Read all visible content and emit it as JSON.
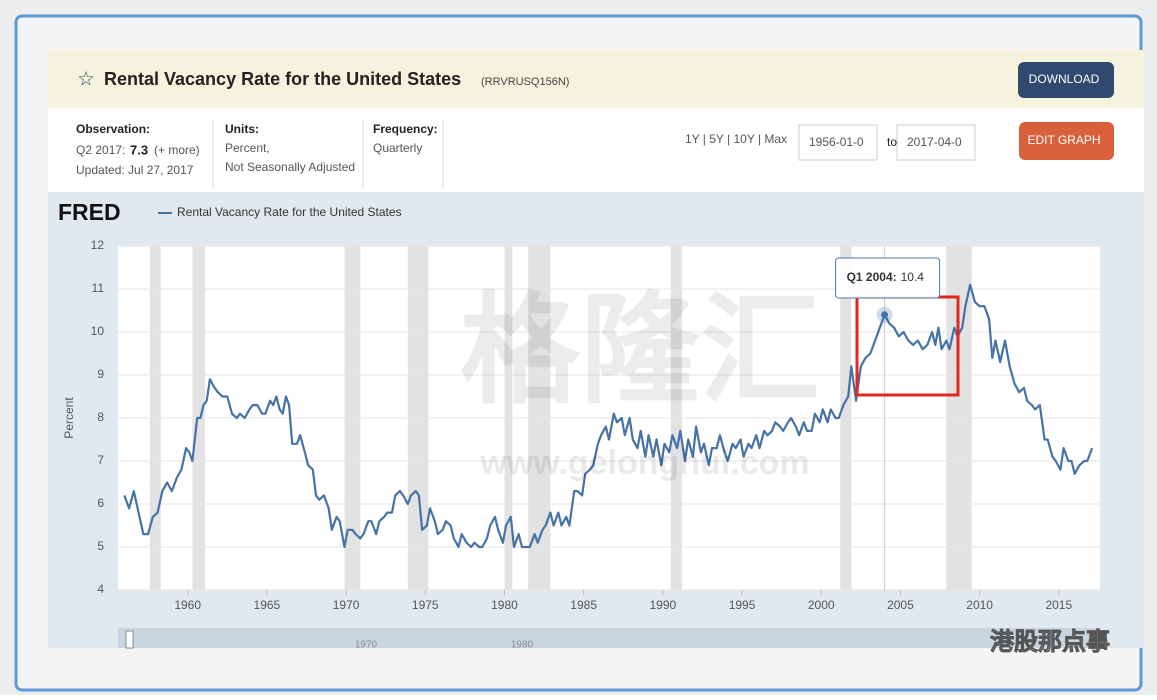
{
  "header": {
    "title": "Rental Vacancy Rate for the United States",
    "series_id": "(RRVRUSQ156N)",
    "download": "DOWNLOAD"
  },
  "info": {
    "observation_label": "Observation:",
    "observation_period": "Q2 2017:",
    "observation_value": 7.3,
    "observation_more": "(+ more)",
    "updated": "Updated: Jul 27, 2017",
    "units_label": "Units:",
    "units": [
      "Percent,",
      "Not Seasonally Adjusted"
    ],
    "frequency_label": "Frequency:",
    "frequency": "Quarterly"
  },
  "controls": {
    "ranges": "1Y | 5Y | 10Y | Max",
    "start": "1956-01-0",
    "to": "to",
    "end": "2017-04-0",
    "edit": "EDIT GRAPH"
  },
  "watermarks": [
    "格隆汇",
    "www.gelonghui.com",
    "港股那点事"
  ],
  "chart_data": {
    "type": "line",
    "logo": "FRED",
    "ylabel": "Percent",
    "grid": true,
    "xlim": [
      1955.6,
      2017.6
    ],
    "ylim": [
      4,
      12
    ],
    "xticks": [
      1960,
      1965,
      1970,
      1975,
      1980,
      1985,
      1990,
      1995,
      2000,
      2005,
      2010,
      2015
    ],
    "yticks": [
      4,
      5,
      6,
      7,
      8,
      9,
      10,
      11,
      12
    ],
    "shaded_periods": [
      [
        1957.6,
        1958.3
      ],
      [
        1960.3,
        1961.1
      ],
      [
        1969.9,
        1970.9
      ],
      [
        1973.9,
        1975.2
      ],
      [
        1980.0,
        1980.5
      ],
      [
        1981.5,
        1982.9
      ],
      [
        1990.5,
        1991.2
      ],
      [
        2001.2,
        2001.9
      ],
      [
        2007.9,
        2009.5
      ]
    ],
    "shade_color": "#e2e2e2",
    "tooltip": {
      "label": "Q1 2004:",
      "value": 10.4,
      "index": 189
    },
    "navigator_labels": [
      "1970",
      "1980"
    ],
    "x": [
      1956.0,
      1956.3,
      1956.6,
      1956.9,
      1957.2,
      1957.5,
      1957.8,
      1958.1,
      1958.4,
      1958.7,
      1959.0,
      1959.3,
      1959.6,
      1959.9,
      1960.1,
      1960.3,
      1960.6,
      1960.8,
      1961.0,
      1961.2,
      1961.4,
      1961.7,
      1961.9,
      1962.2,
      1962.5,
      1962.8,
      1963.1,
      1963.3,
      1963.6,
      1963.9,
      1964.1,
      1964.4,
      1964.7,
      1964.9,
      1965.2,
      1965.4,
      1965.6,
      1965.8,
      1966.0,
      1966.2,
      1966.4,
      1966.6,
      1966.9,
      1967.1,
      1967.4,
      1967.6,
      1967.9,
      1968.1,
      1968.3,
      1968.6,
      1968.9,
      1969.1,
      1969.4,
      1969.6,
      1969.9,
      1970.1,
      1970.4,
      1970.6,
      1970.9,
      1971.1,
      1971.4,
      1971.6,
      1971.9,
      1972.1,
      1972.4,
      1972.6,
      1972.9,
      1973.1,
      1973.4,
      1973.6,
      1973.9,
      1974.1,
      1974.4,
      1974.6,
      1974.8,
      1975.1,
      1975.3,
      1975.6,
      1975.8,
      1976.1,
      1976.3,
      1976.6,
      1976.8,
      1977.1,
      1977.3,
      1977.6,
      1977.9,
      1978.1,
      1978.4,
      1978.6,
      1978.9,
      1979.1,
      1979.4,
      1979.6,
      1979.9,
      1980.1,
      1980.4,
      1980.6,
      1980.9,
      1981.1,
      1981.4,
      1981.6,
      1981.9,
      1982.1,
      1982.4,
      1982.6,
      1982.9,
      1983.1,
      1983.4,
      1983.6,
      1983.9,
      1984.1,
      1984.4,
      1984.6,
      1984.9,
      1985.1,
      1985.4,
      1985.6,
      1985.9,
      1986.1,
      1986.4,
      1986.6,
      1986.9,
      1987.1,
      1987.4,
      1987.6,
      1987.9,
      1988.1,
      1988.4,
      1988.6,
      1988.9,
      1989.1,
      1989.4,
      1989.6,
      1989.9,
      1990.1,
      1990.4,
      1990.6,
      1990.9,
      1991.1,
      1991.4,
      1991.6,
      1991.9,
      1992.1,
      1992.4,
      1992.6,
      1992.9,
      1993.1,
      1993.4,
      1993.6,
      1993.9,
      1994.1,
      1994.4,
      1994.6,
      1994.9,
      1995.1,
      1995.4,
      1995.6,
      1995.9,
      1996.1,
      1996.4,
      1996.6,
      1996.9,
      1997.1,
      1997.4,
      1997.6,
      1997.9,
      1998.1,
      1998.4,
      1998.6,
      1998.9,
      1999.1,
      1999.4,
      1999.6,
      1999.9,
      2000.1,
      2000.4,
      2000.6,
      2000.9,
      2001.1,
      2001.4,
      2001.7,
      2001.9,
      2002.2,
      2002.5,
      2002.8,
      2003.1,
      2003.4,
      2003.7,
      2004.0,
      2004.3,
      2004.6,
      2004.9,
      2005.2,
      2005.5,
      2005.8,
      2006.1,
      2006.4,
      2006.7,
      2007.0,
      2007.2,
      2007.4,
      2007.6,
      2007.9,
      2008.1,
      2008.4,
      2008.6,
      2008.9,
      2009.1,
      2009.4,
      2009.7,
      2010.0,
      2010.3,
      2010.6,
      2010.8,
      2011.0,
      2011.3,
      2011.6,
      2011.9,
      2012.2,
      2012.5,
      2012.8,
      2013.0,
      2013.3,
      2013.5,
      2013.8,
      2014.1,
      2014.3,
      2014.6,
      2014.8,
      2015.1,
      2015.3,
      2015.6,
      2015.8,
      2016.0,
      2016.3,
      2016.6,
      2016.8,
      2017.1
    ],
    "series": [
      {
        "name": "Rental Vacancy Rate for the United States",
        "color": "#4572a7",
        "values": [
          6.2,
          5.9,
          6.3,
          5.8,
          5.3,
          5.3,
          5.7,
          5.8,
          6.3,
          6.5,
          6.3,
          6.6,
          6.8,
          7.3,
          7.2,
          7.0,
          8.0,
          8.0,
          8.3,
          8.4,
          8.9,
          8.7,
          8.6,
          8.5,
          8.5,
          8.1,
          8.0,
          8.1,
          8.0,
          8.2,
          8.3,
          8.3,
          8.1,
          8.1,
          8.4,
          8.3,
          8.5,
          8.2,
          8.1,
          8.5,
          8.3,
          7.4,
          7.4,
          7.6,
          7.2,
          6.9,
          6.8,
          6.2,
          6.1,
          6.2,
          5.9,
          5.4,
          5.7,
          5.6,
          5.0,
          5.4,
          5.4,
          5.3,
          5.2,
          5.3,
          5.6,
          5.6,
          5.3,
          5.6,
          5.7,
          5.8,
          5.8,
          6.2,
          6.3,
          6.2,
          6.0,
          6.2,
          6.3,
          6.2,
          5.4,
          5.5,
          5.9,
          5.6,
          5.3,
          5.4,
          5.6,
          5.5,
          5.2,
          5.0,
          5.3,
          5.1,
          5.0,
          5.1,
          5.0,
          5.0,
          5.2,
          5.5,
          5.7,
          5.4,
          5.1,
          5.5,
          5.7,
          5.0,
          5.3,
          5.0,
          5.0,
          5.0,
          5.3,
          5.1,
          5.4,
          5.5,
          5.8,
          5.5,
          5.8,
          5.5,
          5.7,
          5.5,
          6.3,
          6.3,
          6.2,
          6.7,
          6.8,
          6.9,
          7.4,
          7.6,
          7.8,
          7.5,
          8.1,
          7.9,
          8.0,
          7.6,
          8.0,
          7.5,
          7.3,
          7.7,
          7.1,
          7.6,
          7.1,
          7.5,
          6.9,
          7.4,
          7.2,
          7.6,
          7.3,
          7.7,
          7.0,
          7.5,
          7.1,
          7.8,
          7.2,
          7.4,
          6.9,
          7.3,
          7.3,
          7.6,
          7.2,
          7.0,
          7.4,
          7.3,
          7.5,
          7.1,
          7.4,
          7.3,
          7.6,
          7.3,
          7.7,
          7.6,
          7.7,
          7.9,
          7.8,
          7.7,
          7.9,
          8.0,
          7.8,
          7.6,
          7.9,
          7.7,
          7.7,
          8.1,
          7.9,
          8.2,
          7.9,
          8.2,
          8.0,
          8.0,
          8.3,
          8.5,
          9.2,
          8.4,
          9.2,
          9.4,
          9.5,
          9.8,
          10.1,
          10.4,
          10.2,
          10.1,
          9.9,
          10.0,
          9.8,
          9.7,
          9.8,
          9.6,
          9.7,
          10.0,
          9.7,
          10.1,
          9.6,
          9.8,
          9.6,
          10.1,
          9.9,
          10.1,
          10.6,
          11.1,
          10.7,
          10.6,
          10.6,
          10.3,
          9.4,
          9.8,
          9.3,
          9.8,
          9.2,
          8.8,
          8.6,
          8.7,
          8.4,
          8.3,
          8.2,
          8.3,
          7.5,
          7.5,
          7.1,
          7.0,
          6.8,
          7.3,
          7.0,
          7.0,
          6.7,
          6.9,
          7.0,
          7.0,
          7.3
        ]
      }
    ]
  }
}
